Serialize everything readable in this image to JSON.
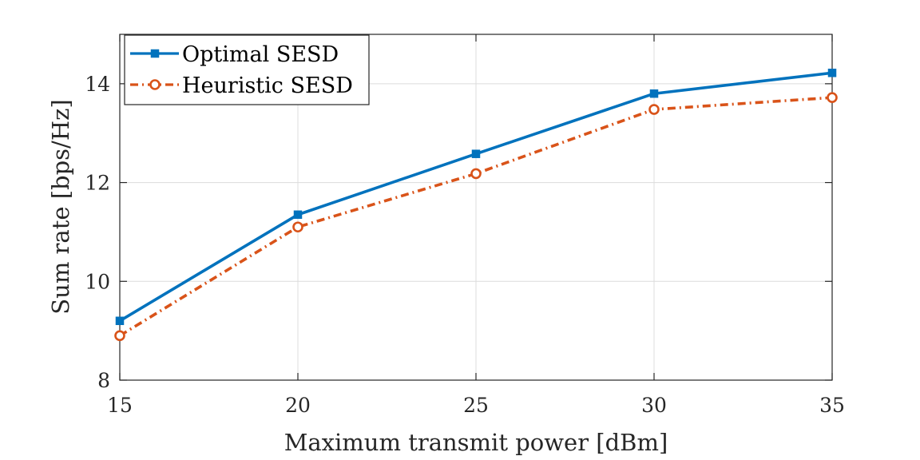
{
  "chart_data": {
    "type": "line",
    "title": "",
    "xlabel": "Maximum transmit power [dBm]",
    "ylabel": "Sum rate [bps/Hz]",
    "x": [
      15,
      20,
      25,
      30,
      35
    ],
    "xlim": [
      15,
      35
    ],
    "ylim": [
      8,
      15
    ],
    "xticks": [
      15,
      20,
      25,
      30,
      35
    ],
    "yticks": [
      8,
      10,
      12,
      14
    ],
    "grid": true,
    "legend_position": "top-left",
    "series": [
      {
        "name": "Optimal SESD",
        "values": [
          9.2,
          11.35,
          12.58,
          13.8,
          14.22
        ],
        "color": "#0072BD",
        "line_style": "solid",
        "marker": "square"
      },
      {
        "name": "Heuristic SESD",
        "values": [
          8.9,
          11.1,
          12.18,
          13.48,
          13.72
        ],
        "color": "#D95319",
        "line_style": "dash-dot",
        "marker": "circle"
      }
    ]
  }
}
